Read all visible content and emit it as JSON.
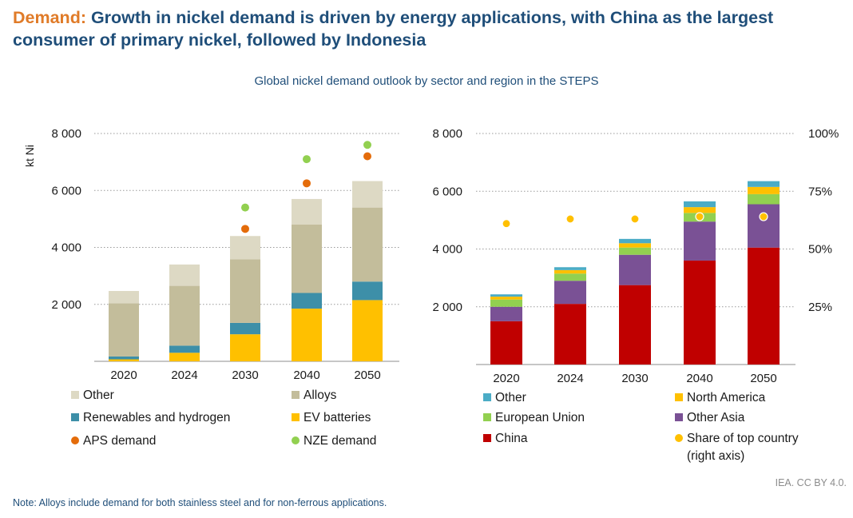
{
  "header": {
    "title_lead": "Demand:",
    "title_rest": " Growth in nickel demand is driven by energy applications, with China as the largest consumer of primary nickel, followed by Indonesia",
    "subtitle": "Global nickel demand outlook by sector and region in the STEPS"
  },
  "footer": {
    "credit": "IEA. CC BY 4.0.",
    "note": "Note: Alloys include demand for both stainless steel and for non-ferrous applications."
  },
  "chart_data": [
    {
      "type": "bar",
      "stacked": true,
      "ylabel": "kt Ni",
      "ylim": [
        0,
        8000
      ],
      "y_ticks": [
        2000,
        4000,
        6000,
        8000
      ],
      "y_tick_labels": [
        "2 000",
        "4 000",
        "6 000",
        "8 000"
      ],
      "categories": [
        "2020",
        "2024",
        "2030",
        "2040",
        "2050"
      ],
      "series": [
        {
          "name": "EV batteries",
          "color": "#ffc000",
          "values": [
            70,
            300,
            950,
            1850,
            2150
          ]
        },
        {
          "name": "Renewables and hydrogen",
          "color": "#3d8fa8",
          "values": [
            100,
            250,
            400,
            550,
            650
          ]
        },
        {
          "name": "Alloys",
          "color": "#c3bd9b",
          "values": [
            1870,
            2100,
            2230,
            2400,
            2600
          ]
        },
        {
          "name": "Other",
          "color": "#ddd9c4",
          "values": [
            430,
            750,
            820,
            900,
            930
          ]
        }
      ],
      "markers": [
        {
          "name": "APS demand",
          "color": "#e46c0a",
          "values": [
            null,
            null,
            4650,
            6250,
            7200
          ]
        },
        {
          "name": "NZE demand",
          "color": "#92d050",
          "values": [
            null,
            null,
            5400,
            7100,
            7600
          ]
        }
      ],
      "legend": {
        "placement": "bottom",
        "items": [
          {
            "label": "Other",
            "color": "#ddd9c4",
            "shape": "square"
          },
          {
            "label": "Alloys",
            "color": "#c3bd9b",
            "shape": "square"
          },
          {
            "label": "Renewables and hydrogen",
            "color": "#3d8fa8",
            "shape": "square"
          },
          {
            "label": "EV batteries",
            "color": "#ffc000",
            "shape": "square"
          },
          {
            "label": "APS demand",
            "color": "#e46c0a",
            "shape": "circle"
          },
          {
            "label": "NZE demand",
            "color": "#92d050",
            "shape": "circle"
          }
        ]
      },
      "grid": true
    },
    {
      "type": "bar",
      "stacked": true,
      "ylim": [
        0,
        8000
      ],
      "y_ticks": [
        2000,
        4000,
        6000,
        8000
      ],
      "y_tick_labels": [
        "2 000",
        "4 000",
        "6 000",
        "8 000"
      ],
      "y2lim": [
        0,
        100
      ],
      "y2_ticks": [
        25,
        50,
        75,
        100
      ],
      "y2_tick_labels": [
        "25%",
        "50%",
        "75%",
        "100%"
      ],
      "categories": [
        "2020",
        "2024",
        "2030",
        "2040",
        "2050"
      ],
      "series": [
        {
          "name": "China",
          "color": "#c00000",
          "values": [
            1500,
            2100,
            2750,
            3600,
            4050
          ]
        },
        {
          "name": "Other Asia",
          "color": "#7a5195",
          "values": [
            500,
            800,
            1050,
            1350,
            1500
          ]
        },
        {
          "name": "European Union",
          "color": "#92d050",
          "values": [
            250,
            250,
            250,
            300,
            350
          ]
        },
        {
          "name": "North America",
          "color": "#ffc000",
          "values": [
            100,
            120,
            150,
            200,
            250
          ]
        },
        {
          "name": "Other",
          "color": "#4bacc6",
          "values": [
            80,
            100,
            150,
            200,
            200
          ]
        }
      ],
      "markers": [
        {
          "name": "Share of top country",
          "axis": "right",
          "color": "#ffc000",
          "values": [
            61,
            63,
            63,
            64,
            64
          ]
        }
      ],
      "legend": {
        "placement": "bottom",
        "items": [
          {
            "label": "Other",
            "color": "#4bacc6",
            "shape": "square"
          },
          {
            "label": "North America",
            "color": "#ffc000",
            "shape": "square"
          },
          {
            "label": "European Union",
            "color": "#92d050",
            "shape": "square"
          },
          {
            "label": "Other Asia",
            "color": "#7a5195",
            "shape": "square"
          },
          {
            "label": "China",
            "color": "#c00000",
            "shape": "square"
          },
          {
            "label": "Share of top country",
            "label2": "(right axis)",
            "color": "#ffc000",
            "shape": "circle"
          }
        ]
      },
      "grid": true
    }
  ]
}
